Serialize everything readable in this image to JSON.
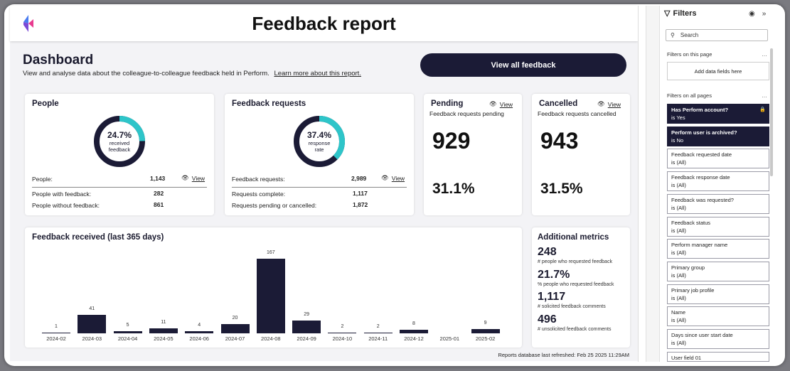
{
  "header": {
    "title": "Feedback report"
  },
  "dashboard": {
    "title": "Dashboard",
    "subtitle": "View and analyse data about the colleague-to-colleague feedback held in Perform.",
    "learn_more": "Learn more about this report.",
    "view_all_label": "View all feedback"
  },
  "people": {
    "title": "People",
    "donut_pct": "24.7%",
    "donut_line1": "received",
    "donut_line2": "feedback",
    "donut_fraction": 0.247,
    "row1_label": "People:",
    "row1_value": "1,143",
    "row2_label": "People with feedback:",
    "row2_value": "282",
    "row3_label": "People without feedback:",
    "row3_value": "861",
    "view_label": "View"
  },
  "requests": {
    "title": "Feedback requests",
    "donut_pct": "37.4%",
    "donut_line1": "response",
    "donut_line2": "rate",
    "donut_fraction": 0.374,
    "row1_label": "Feedback requests:",
    "row1_value": "2,989",
    "row2_label": "Requests complete:",
    "row2_value": "1,117",
    "row3_label": "Requests pending or cancelled:",
    "row3_value": "1,872",
    "view_label": "View"
  },
  "pending": {
    "title": "Pending",
    "view_label": "View",
    "subtitle": "Feedback requests pending",
    "count": "929",
    "pct": "31.1%"
  },
  "cancelled": {
    "title": "Cancelled",
    "view_label": "View",
    "subtitle": "Feedback requests cancelled",
    "count": "943",
    "pct": "31.5%"
  },
  "chart_data": {
    "type": "bar",
    "title": "Feedback received (last 365 days)",
    "categories": [
      "2024-02",
      "2024-03",
      "2024-04",
      "2024-05",
      "2024-06",
      "2024-07",
      "2024-08",
      "2024-09",
      "2024-10",
      "2024-11",
      "2024-12",
      "2025-01",
      "2025-02"
    ],
    "values": [
      1,
      41,
      5,
      11,
      4,
      20,
      167,
      29,
      2,
      2,
      8,
      null,
      9
    ],
    "ylim": [
      0,
      167
    ],
    "grid": false,
    "color": "#1b1b36"
  },
  "metrics": {
    "title": "Additional metrics",
    "items": [
      {
        "value": "248",
        "label": "# people who requested feedback"
      },
      {
        "value": "21.7%",
        "label": "% people who requested feedback"
      },
      {
        "value": "1,117",
        "label": "# solicited feedback comments"
      },
      {
        "value": "496",
        "label": "# unsolicited feedback comments"
      }
    ]
  },
  "refreshed": "Reports database last refreshed: Feb 25 2025 11:29AM",
  "filters": {
    "title": "Filters",
    "search_placeholder": "Search",
    "on_page_label": "Filters on this page",
    "add_fields": "Add data fields here",
    "all_pages_label": "Filters on all pages",
    "items": [
      {
        "name": "Has Perform account?",
        "value": "is Yes",
        "dark": true
      },
      {
        "name": "Perform user is archived?",
        "value": "is No",
        "dark": true
      },
      {
        "name": "Feedback requested date",
        "value": "is (All)"
      },
      {
        "name": "Feedback response date",
        "value": "is (All)"
      },
      {
        "name": "Feedback was requested?",
        "value": "is (All)"
      },
      {
        "name": "Feedback status",
        "value": "is (All)"
      },
      {
        "name": "Perform manager name",
        "value": "is (All)"
      },
      {
        "name": "Primary group",
        "value": "is (All)"
      },
      {
        "name": "Primary job profile",
        "value": "is (All)"
      },
      {
        "name": "Name",
        "value": "is (All)"
      },
      {
        "name": "Days since user start date",
        "value": "is (All)"
      },
      {
        "name": "User field 01",
        "value": ""
      }
    ]
  },
  "colors": {
    "navy": "#1b1b36",
    "teal": "#2ec5c9"
  }
}
